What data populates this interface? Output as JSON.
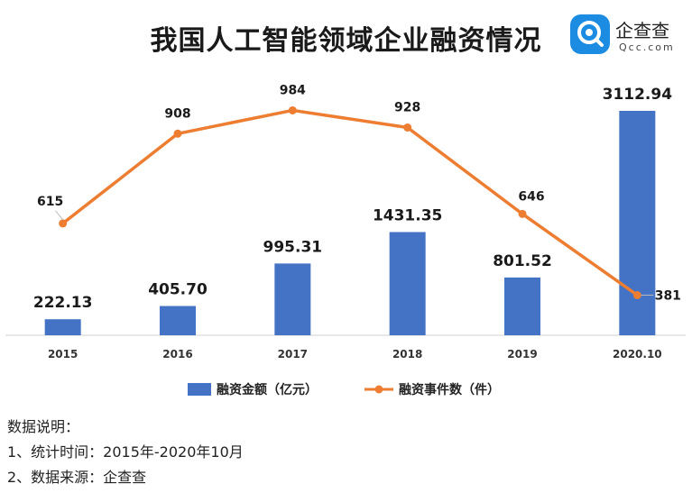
{
  "title": "我国人工智能领域企业融资情况",
  "logo": {
    "name_cn": "企查查",
    "name_en": "Qcc.com"
  },
  "chart_data": {
    "type": "bar",
    "categories": [
      "2015",
      "2016",
      "2017",
      "2018",
      "2019",
      "2020.10"
    ],
    "series": [
      {
        "name": "融资金额（亿元）",
        "type": "bar",
        "color": "#4472C4",
        "values": [
          222.13,
          405.7,
          995.31,
          1431.35,
          801.52,
          3112.94
        ],
        "labels": [
          "222.13",
          "405.70",
          "995.31",
          "1431.35",
          "801.52",
          "3112.94"
        ]
      },
      {
        "name": "融资事件数（件）",
        "type": "line",
        "color": "#ED7D31",
        "values": [
          615,
          908,
          984,
          928,
          646,
          381
        ],
        "labels": [
          "615",
          "908",
          "984",
          "928",
          "646",
          "381"
        ]
      }
    ],
    "bar_axis_range": [
      0,
      3400
    ],
    "line_axis_range": [
      250,
      1050
    ],
    "axis_labels_visible": false,
    "grid": false,
    "legend_position": "bottom"
  },
  "notes": [
    "数据说明：",
    "1、统计时间：2015年-2020年10月",
    "2、数据来源：企查查"
  ]
}
